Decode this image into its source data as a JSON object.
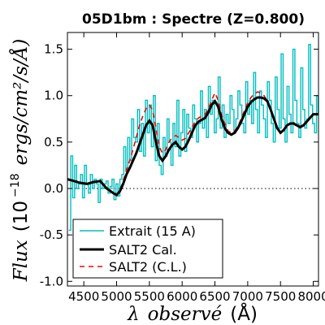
{
  "chart_data": {
    "type": "line",
    "title": "05D1bm : Spectre (Z=0.800)",
    "xlabel_parts": {
      "lambda": "λ",
      "word": "observé",
      "unit": "(Å)"
    },
    "ylabel_parts": {
      "flux": "Flux",
      "scale": "(10",
      "exp": "−18",
      "units": "ergs/cm²/s/Å)"
    },
    "xlim": [
      4250,
      8080
    ],
    "ylim": [
      -1.05,
      1.68
    ],
    "xticks": [
      {
        "value": 4500,
        "label": "4500"
      },
      {
        "value": 5000,
        "label": "5000"
      },
      {
        "value": 5500,
        "label": "5500"
      },
      {
        "value": 6000,
        "label": "6000"
      },
      {
        "value": 6500,
        "label": "6500"
      },
      {
        "value": 7000,
        "label": "7000"
      },
      {
        "value": 7500,
        "label": "7500"
      },
      {
        "value": 8000,
        "label": "8000"
      }
    ],
    "yticks": [
      {
        "value": -1.0,
        "label": "-1.0"
      },
      {
        "value": -0.5,
        "label": "-0.5"
      },
      {
        "value": 0.0,
        "label": "0.0"
      },
      {
        "value": 0.5,
        "label": "0.5"
      },
      {
        "value": 1.0,
        "label": "1.0"
      },
      {
        "value": 1.5,
        "label": "1.5"
      }
    ],
    "zero_line": {
      "y": 0.0,
      "style": "dotted"
    },
    "legend": {
      "position": "lower-left"
    },
    "series": [
      {
        "name": "Extrait (15 A)",
        "style": "step",
        "color": "#00bfbf",
        "x": [
          4270,
          4300,
          4330,
          4360,
          4390,
          4420,
          4450,
          4480,
          4510,
          4540,
          4570,
          4600,
          4630,
          4660,
          4690,
          4720,
          4750,
          4780,
          4810,
          4840,
          4870,
          4900,
          4930,
          4960,
          4990,
          5020,
          5050,
          5080,
          5110,
          5140,
          5170,
          5200,
          5230,
          5260,
          5290,
          5320,
          5350,
          5380,
          5410,
          5440,
          5470,
          5500,
          5530,
          5560,
          5590,
          5620,
          5650,
          5680,
          5710,
          5740,
          5770,
          5800,
          5830,
          5860,
          5890,
          5920,
          5950,
          5980,
          6010,
          6040,
          6070,
          6100,
          6130,
          6160,
          6190,
          6220,
          6250,
          6280,
          6310,
          6340,
          6370,
          6400,
          6430,
          6460,
          6490,
          6520,
          6550,
          6580,
          6610,
          6640,
          6670,
          6700,
          6730,
          6760,
          6790,
          6820,
          6850,
          6880,
          6910,
          6940,
          6970,
          7000,
          7030,
          7060,
          7090,
          7120,
          7150,
          7180,
          7210,
          7240,
          7270,
          7300,
          7330,
          7360,
          7390,
          7420,
          7450,
          7480,
          7510,
          7540,
          7570,
          7600,
          7630,
          7660,
          7690,
          7720,
          7750,
          7780,
          7810,
          7840,
          7870,
          7900,
          7930,
          7960,
          7990,
          8020,
          8050,
          8075
        ],
        "values": [
          -0.45,
          0.35,
          -0.1,
          0.25,
          0.0,
          0.05,
          0.15,
          -0.1,
          0.25,
          0.05,
          -0.05,
          0.15,
          0.0,
          0.1,
          0.05,
          -0.15,
          0.1,
          0.0,
          0.05,
          0.08,
          -0.05,
          0.02,
          0.1,
          -0.12,
          0.05,
          -0.08,
          0.1,
          0.15,
          0.45,
          0.2,
          0.55,
          0.3,
          0.75,
          0.55,
          0.5,
          0.85,
          0.4,
          0.7,
          0.35,
          0.95,
          0.6,
          0.9,
          0.45,
          1.0,
          0.3,
          0.7,
          0.25,
          0.15,
          0.55,
          0.35,
          0.75,
          0.5,
          0.25,
          0.7,
          0.45,
          0.95,
          0.35,
          0.6,
          0.85,
          0.4,
          0.8,
          0.65,
          0.55,
          0.9,
          0.75,
          0.5,
          0.7,
          1.05,
          0.65,
          0.85,
          0.55,
          1.1,
          0.8,
          0.95,
          0.6,
          0.75,
          1.2,
          0.65,
          0.9,
          0.55,
          0.8,
          0.7,
          1.0,
          0.85,
          0.6,
          0.75,
          1.05,
          0.9,
          0.7,
          0.6,
          1.15,
          0.8,
          0.95,
          0.7,
          1.25,
          0.85,
          0.6,
          1.05,
          0.9,
          0.75,
          0.55,
          1.15,
          0.95,
          0.7,
          0.5,
          1.2,
          0.85,
          0.65,
          1.45,
          0.75,
          0.5,
          1.1,
          0.8,
          0.6,
          1.5,
          0.95,
          0.7,
          0.55,
          1.3,
          0.85,
          0.65,
          0.75,
          1.55,
          0.9,
          0.7,
          0.6,
          1.0,
          0.8
        ]
      },
      {
        "name": "SALT2 Cal.",
        "style": "line",
        "color": "#000000",
        "x": [
          4250,
          4350,
          4450,
          4550,
          4650,
          4750,
          4850,
          4950,
          5000,
          5050,
          5100,
          5150,
          5200,
          5250,
          5300,
          5350,
          5400,
          5450,
          5500,
          5550,
          5600,
          5650,
          5700,
          5750,
          5800,
          5850,
          5900,
          5950,
          6000,
          6050,
          6100,
          6150,
          6200,
          6250,
          6300,
          6350,
          6400,
          6450,
          6500,
          6550,
          6600,
          6650,
          6700,
          6750,
          6800,
          6850,
          6900,
          6950,
          7000,
          7050,
          7100,
          7150,
          7200,
          7250,
          7300,
          7350,
          7400,
          7450,
          7500,
          7550,
          7600,
          7650,
          7700,
          7750,
          7800,
          7850,
          7900,
          7950,
          8000,
          8050,
          8080
        ],
        "values": [
          0.1,
          0.08,
          0.06,
          0.05,
          0.07,
          0.08,
          0.0,
          -0.05,
          -0.07,
          -0.03,
          0.05,
          0.15,
          0.22,
          0.3,
          0.38,
          0.48,
          0.58,
          0.68,
          0.73,
          0.68,
          0.5,
          0.35,
          0.3,
          0.35,
          0.42,
          0.47,
          0.5,
          0.45,
          0.42,
          0.45,
          0.52,
          0.6,
          0.68,
          0.72,
          0.74,
          0.76,
          0.82,
          0.9,
          0.94,
          0.88,
          0.75,
          0.65,
          0.6,
          0.58,
          0.6,
          0.65,
          0.72,
          0.8,
          0.88,
          0.93,
          0.96,
          0.98,
          0.98,
          0.97,
          0.94,
          0.85,
          0.75,
          0.65,
          0.6,
          0.63,
          0.68,
          0.7,
          0.7,
          0.68,
          0.66,
          0.68,
          0.72,
          0.76,
          0.8,
          0.8,
          0.8
        ]
      },
      {
        "name": "SALT2 (C.L.)",
        "style": "dashed",
        "color": "#ff0000",
        "x": [
          4250,
          4350,
          4450,
          4550,
          4650,
          4750,
          4850,
          4950,
          5000,
          5050,
          5100,
          5150,
          5200,
          5250,
          5300,
          5350,
          5400,
          5450,
          5500,
          5550,
          5600,
          5650,
          5700,
          5750,
          5800,
          5850,
          5900,
          5950,
          6000,
          6050,
          6100,
          6150,
          6200,
          6250,
          6300,
          6350,
          6400,
          6450,
          6500,
          6550,
          6600,
          6650,
          6700,
          6750,
          6800,
          6850,
          6900,
          6950,
          7000,
          7050,
          7100,
          7150,
          7200,
          7250,
          7300,
          7350,
          7400,
          7450,
          7500,
          7550,
          7600,
          7650,
          7700,
          7750,
          7800,
          7850,
          7900,
          7950,
          8000,
          8050,
          8080
        ],
        "values": [
          0.1,
          0.08,
          0.06,
          0.05,
          0.07,
          0.08,
          0.0,
          -0.05,
          -0.07,
          -0.02,
          0.08,
          0.2,
          0.3,
          0.42,
          0.55,
          0.68,
          0.78,
          0.86,
          0.9,
          0.84,
          0.65,
          0.45,
          0.38,
          0.42,
          0.5,
          0.55,
          0.57,
          0.55,
          0.52,
          0.54,
          0.6,
          0.66,
          0.72,
          0.76,
          0.78,
          0.8,
          0.86,
          0.95,
          1.03,
          0.95,
          0.8,
          0.7,
          0.62,
          0.6,
          0.62,
          0.67,
          0.75,
          0.84,
          0.92,
          0.98,
          1.02,
          1.04,
          1.03,
          1.0,
          0.94,
          0.85,
          0.75,
          0.66,
          0.61,
          0.63,
          0.68,
          0.7,
          0.71,
          0.69,
          0.67,
          0.69,
          0.73,
          0.76,
          0.8,
          0.8,
          0.8
        ]
      }
    ]
  }
}
